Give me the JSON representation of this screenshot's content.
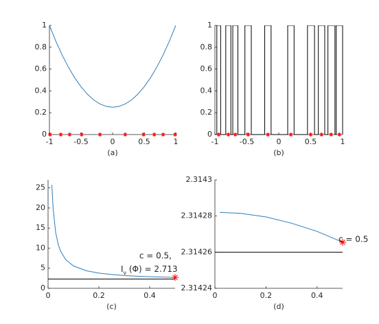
{
  "chart_data": [
    {
      "type": "line",
      "xlabel": "(a)",
      "xlim": [
        -1,
        1
      ],
      "xticks": [
        -1,
        -0.5,
        0,
        0.5,
        1
      ],
      "ylim": [
        0,
        1
      ],
      "yticks": [
        0,
        0.2,
        0.4,
        0.6,
        0.8,
        1
      ],
      "series": [
        {
          "mode": "line",
          "color": "#2b7bba",
          "x": [
            -1,
            -0.9,
            -0.8,
            -0.7,
            -0.6,
            -0.5,
            -0.4,
            -0.3,
            -0.2,
            -0.1,
            0,
            0.1,
            0.2,
            0.3,
            0.4,
            0.5,
            0.6,
            0.7,
            0.8,
            0.9,
            1
          ],
          "values": [
            1,
            0.8575,
            0.73,
            0.6175,
            0.52,
            0.4375,
            0.37,
            0.3175,
            0.28,
            0.2575,
            0.25,
            0.2575,
            0.28,
            0.3175,
            0.37,
            0.4375,
            0.52,
            0.6175,
            0.73,
            0.8575,
            1
          ]
        },
        {
          "mode": "markers",
          "color": "#ff0000",
          "x": [
            -0.99,
            -0.82,
            -0.68,
            -0.49,
            -0.2,
            0.2,
            0.49,
            0.66,
            0.8,
            0.99
          ],
          "values": [
            0,
            0,
            0,
            0,
            0,
            0,
            0,
            0,
            0,
            0
          ]
        }
      ]
    },
    {
      "type": "line",
      "xlabel": "(b)",
      "xlim": [
        -1,
        1
      ],
      "xticks": [
        -1,
        -0.5,
        0,
        0.5,
        1
      ],
      "ylim": [
        0,
        1
      ],
      "yticks": [
        0,
        0.2,
        0.4,
        0.6,
        0.8,
        1
      ],
      "series": [
        {
          "mode": "line",
          "color": "#000000",
          "x": [
            -1,
            -0.97,
            -0.97,
            -0.91,
            -0.91,
            -0.83,
            -0.83,
            -0.75,
            -0.75,
            -0.72,
            -0.72,
            -0.64,
            -0.64,
            -0.53,
            -0.53,
            -0.43,
            -0.43,
            -0.22,
            -0.22,
            -0.12,
            -0.12,
            0.14,
            0.14,
            0.24,
            0.24,
            0.45,
            0.45,
            0.56,
            0.56,
            0.62,
            0.62,
            0.72,
            0.72,
            0.77,
            0.77,
            0.88,
            0.88,
            0.9,
            0.9,
            1,
            1
          ],
          "values": [
            0,
            0,
            1,
            1,
            0,
            0,
            1,
            1,
            0,
            0,
            1,
            1,
            0,
            0,
            1,
            1,
            0,
            0,
            1,
            1,
            0,
            0,
            1,
            1,
            0,
            0,
            1,
            1,
            0,
            0,
            1,
            1,
            0,
            0,
            1,
            1,
            0,
            0,
            1,
            1,
            0
          ]
        },
        {
          "mode": "markers",
          "color": "#ff0000",
          "x": [
            -0.94,
            -0.79,
            -0.68,
            -0.48,
            -0.17,
            0.19,
            0.5,
            0.67,
            0.82,
            0.95
          ],
          "values": [
            0,
            0,
            0,
            0,
            0,
            0,
            0,
            0,
            0,
            0
          ]
        }
      ]
    },
    {
      "type": "line",
      "xlabel": "(c)",
      "xlim": [
        0,
        0.5
      ],
      "xticks": [
        0,
        0.2,
        0.4
      ],
      "ylim": [
        0,
        27
      ],
      "yticks": [
        0,
        5,
        10,
        15,
        20,
        25
      ],
      "annotation": {
        "line1": "c = 0.5,",
        "symbol": "I",
        "subscript": "ν",
        "rest": " (Φ) = 2.713"
      },
      "series": [
        {
          "mode": "line",
          "color": "#2b7bba",
          "x": [
            0.015,
            0.02,
            0.03,
            0.04,
            0.05,
            0.07,
            0.1,
            0.15,
            0.2,
            0.25,
            0.3,
            0.35,
            0.4,
            0.45,
            0.5
          ],
          "values": [
            25.77,
            19.83,
            13.88,
            10.91,
            9.13,
            7.09,
            5.57,
            4.38,
            3.78,
            3.43,
            3.19,
            3.02,
            2.89,
            2.79,
            2.71
          ]
        },
        {
          "mode": "line",
          "color": "#000000",
          "x": [
            0,
            0.5
          ],
          "values": [
            2.3,
            2.3
          ]
        },
        {
          "mode": "markers",
          "color": "#ff0000",
          "x": [
            0.5
          ],
          "values": [
            2.713
          ]
        }
      ]
    },
    {
      "type": "line",
      "xlabel": "(d)",
      "xlim": [
        0,
        0.5
      ],
      "xticks": [
        0,
        0.2,
        0.4
      ],
      "ylim": [
        2.31424,
        2.3143
      ],
      "yticks": [
        2.31424,
        2.31426,
        2.31428,
        2.3143
      ],
      "annotation": {
        "line1": "c = 0.5"
      },
      "series": [
        {
          "mode": "line",
          "color": "#2b7bba",
          "x": [
            0.02,
            0.1,
            0.2,
            0.3,
            0.4,
            0.5
          ],
          "values": [
            2.314282,
            2.3142815,
            2.3142795,
            2.314276,
            2.3142715,
            2.3142655
          ]
        },
        {
          "mode": "line",
          "color": "#000000",
          "x": [
            0,
            0.5
          ],
          "values": [
            2.31426,
            2.31426
          ]
        },
        {
          "mode": "markers",
          "color": "#ff0000",
          "x": [
            0.5
          ],
          "values": [
            2.3142655
          ]
        }
      ]
    }
  ]
}
